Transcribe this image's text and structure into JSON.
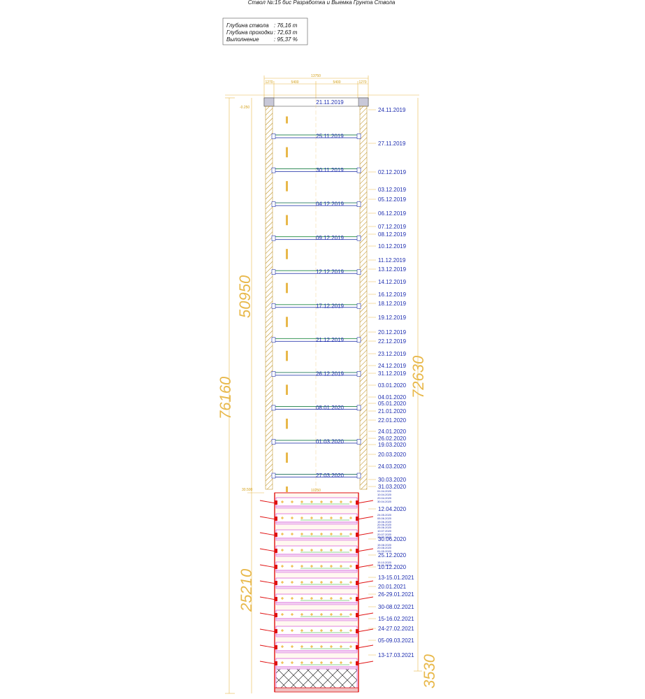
{
  "header": {
    "title": "Ствол №:15 бис Разработка и Выемка Грунта Ствола",
    "info": [
      {
        "label": "Глубина ствола",
        "value": ": 76,16 m"
      },
      {
        "label": "Глубина проходки",
        "value": ": 72,63 m"
      },
      {
        "label": "Выполнение",
        "value": ": 95,37 %"
      }
    ]
  },
  "dimensions": {
    "top_total": "13750",
    "top_parts": [
      "1270",
      "5400",
      "5400",
      "1270"
    ],
    "total_depth": "76160",
    "upper_section": "50950",
    "lower_section": "25210",
    "completed_depth": "72630",
    "lower_width": "10250",
    "side_note": "-0.250",
    "left_note": "30.500",
    "right_bottom": "3530"
  },
  "center_dates": [
    "21.11.2019",
    "25.11.2019",
    "30.11.2019",
    "04.12.2019",
    "09.12.2019",
    "12.12.2019",
    "17.12.2019",
    "21.12.2019",
    "26.12.2019",
    "08.01.2020",
    "01.03.2020",
    "27.03.2020"
  ],
  "right_dates": [
    "24.11.2019",
    "27.11.2019",
    "02.12.2019",
    "03.12.2019",
    "05.12.2019",
    "06.12.2019",
    "07.12.2019",
    "08.12.2019",
    "10.12.2019",
    "11.12.2019",
    "13.12.2019",
    "14.12.2019",
    "16.12.2019",
    "18.12.2019",
    "19.12.2019",
    "20.12.2019",
    "22.12.2019",
    "23.12.2019",
    "24.12.2019",
    "31.12.2019",
    "03.01.2020",
    "04.01.2020",
    "05.01.2020",
    "21.01.2020",
    "22.01.2020",
    "24.01.2020",
    "26.02.2020",
    "19.03.2020",
    "20.03.2020",
    "24.03.2020",
    "30.03.2020",
    "31.03.2020",
    "12.04.2020",
    "30.06.2020",
    "25.12.2020",
    "10.12.2020",
    "13-15.01.2021",
    "20.01.2021",
    "26-29.01.2021",
    "30-08.02.2021",
    "15-16.02.2021",
    "24-27.02.2021",
    "05-09.03.2021",
    "13-17.03.2021"
  ],
  "small_dates": [
    "01.04.2020",
    "10.04.2020",
    "20.04.2020",
    "30.04.2020",
    "24.05.2020",
    "05.06.2020",
    "15.06.2020",
    "20.06.2020",
    "25.06.2020",
    "10.07.2020",
    "20.07.2020",
    "30.07.2020",
    "15.08.2020",
    "20.08.2020",
    "01.09.2020",
    "15.10.2020",
    "01.11.2020"
  ],
  "colors": {
    "dimension": "#e8b84a",
    "dates": "#1f2fb0",
    "elevation": "#1fa61f",
    "structure": "#2233aa",
    "lining": "#b8860b",
    "anchors": "#e01010",
    "magenta_rings": "#cc33cc"
  }
}
